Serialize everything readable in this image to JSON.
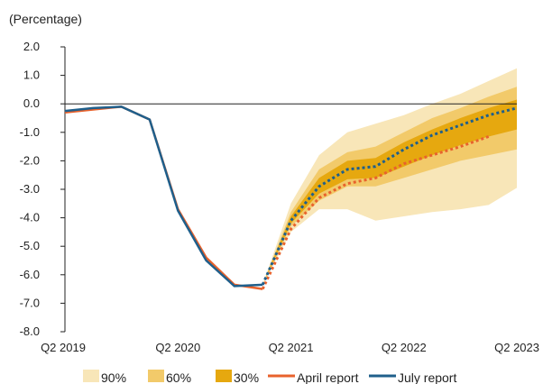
{
  "chart_data": {
    "type": "area",
    "ylabel": "(Percentage)",
    "ylim": [
      -8.0,
      2.0
    ],
    "yticks": [
      "2.0",
      "1.0",
      "0.0",
      "-1.0",
      "-2.0",
      "-3.0",
      "-4.0",
      "-5.0",
      "-6.0",
      "-7.0",
      "-8.0"
    ],
    "x_tick_labels": [
      "Q2 2019",
      "Q2 2020",
      "Q2 2021",
      "Q2 2022",
      "Q2 2023"
    ],
    "x_tick_index": [
      0,
      4,
      8,
      12,
      16
    ],
    "x_range": [
      0,
      16
    ],
    "fan_start_index": 7,
    "series": [
      {
        "name": "April report",
        "color": "#e8622c",
        "history_x": [
          0,
          1,
          2,
          3,
          4,
          5,
          6,
          7
        ],
        "history_y": [
          -0.3,
          -0.2,
          -0.1,
          -0.55,
          -3.7,
          -5.4,
          -6.35,
          -6.5
        ],
        "forecast_x": [
          7,
          8,
          9,
          10,
          11,
          12,
          13,
          14,
          15
        ],
        "forecast_y": [
          -6.5,
          -4.4,
          -3.3,
          -2.8,
          -2.6,
          -2.1,
          -1.8,
          -1.5,
          -1.15
        ]
      },
      {
        "name": "July report",
        "color": "#1f5f8b",
        "history_x": [
          0,
          1,
          2,
          3,
          4,
          5,
          6,
          7
        ],
        "history_y": [
          -0.25,
          -0.15,
          -0.1,
          -0.55,
          -3.75,
          -5.5,
          -6.4,
          -6.35
        ],
        "forecast_x": [
          7,
          8,
          9,
          10,
          11,
          12,
          13,
          14,
          15,
          16
        ],
        "forecast_y": [
          -6.35,
          -4.1,
          -2.9,
          -2.3,
          -2.2,
          -1.6,
          -1.1,
          -0.75,
          -0.4,
          -0.15
        ]
      }
    ],
    "fan_bands": [
      {
        "name": "90%",
        "color": "#f8e6b8",
        "x": [
          7,
          8,
          9,
          10,
          11,
          12,
          13,
          14,
          15,
          16
        ],
        "upper": [
          -6.35,
          -3.5,
          -1.8,
          -1.0,
          -0.7,
          -0.4,
          0.0,
          0.35,
          0.8,
          1.25
        ],
        "lower": [
          -6.35,
          -4.5,
          -3.7,
          -3.7,
          -4.1,
          -3.95,
          -3.8,
          -3.7,
          -3.55,
          -2.95
        ]
      },
      {
        "name": "60%",
        "color": "#f2ca6a",
        "x": [
          7,
          8,
          9,
          10,
          11,
          12,
          13,
          14,
          15,
          16
        ],
        "upper": [
          -6.35,
          -3.8,
          -2.3,
          -1.7,
          -1.5,
          -1.0,
          -0.5,
          -0.15,
          0.25,
          0.6
        ],
        "lower": [
          -6.35,
          -4.3,
          -3.4,
          -2.9,
          -2.9,
          -2.6,
          -2.3,
          -2.0,
          -1.8,
          -1.6
        ]
      },
      {
        "name": "30%",
        "color": "#e6a80f",
        "x": [
          7,
          8,
          9,
          10,
          11,
          12,
          13,
          14,
          15,
          16
        ],
        "upper": [
          -6.35,
          -3.95,
          -2.6,
          -2.0,
          -1.9,
          -1.35,
          -0.9,
          -0.5,
          -0.15,
          0.15
        ],
        "lower": [
          -6.35,
          -4.2,
          -3.15,
          -2.65,
          -2.6,
          -2.2,
          -1.8,
          -1.45,
          -1.15,
          -0.9
        ]
      }
    ],
    "legend": [
      "90%",
      "60%",
      "30%",
      "April report",
      "July report"
    ],
    "legend_position": "bottom",
    "grid": false
  }
}
